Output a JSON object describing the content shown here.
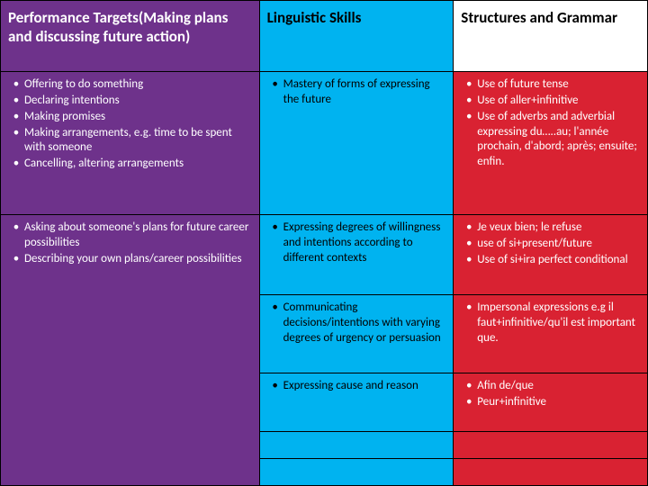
{
  "headers": {
    "col1": "Performance Targets(Making plans and discussing future action)",
    "col2": "Linguistic Skills",
    "col3": "Structures and Grammar"
  },
  "row1": {
    "c1": [
      "Offering to do something",
      "Declaring intentions",
      "Making promises",
      "Making arrangements, e.g. time to be spent with someone",
      "Cancelling, altering arrangements"
    ],
    "c2": [
      "Mastery of forms of expressing the future"
    ],
    "c3": [
      "Use of future tense",
      "Use of aller+infinitive",
      "Use of adverbs and adverbial expressing du…..au; l'année prochain, d'abord; après; ensuite; enfin."
    ]
  },
  "row2": {
    "c1": [
      "Asking about someone's plans for future career possibilities",
      "Describing your own plans/career possibilities"
    ],
    "c2": [
      "Expressing degrees of willingness and intentions according to different contexts"
    ],
    "c3": [
      "Je veux bien; le refuse",
      "use of si+present/future",
      "Use of si+ira perfect conditional"
    ]
  },
  "row3": {
    "c2": [
      "Communicating decisions/intentions with varying degrees of urgency or persuasion"
    ],
    "c3": [
      "Impersonal expressions e.g il faut+infinitive/qu'il est important que."
    ]
  },
  "row4": {
    "c2": [
      "Expressing cause and reason"
    ],
    "c3": [
      "Afin de/que",
      "Peur+infinitive"
    ]
  },
  "colors": {
    "purple": "#6e328b",
    "blue": "#00b3f0",
    "red": "#d92232",
    "white": "#ffffff",
    "black": "#000000"
  }
}
